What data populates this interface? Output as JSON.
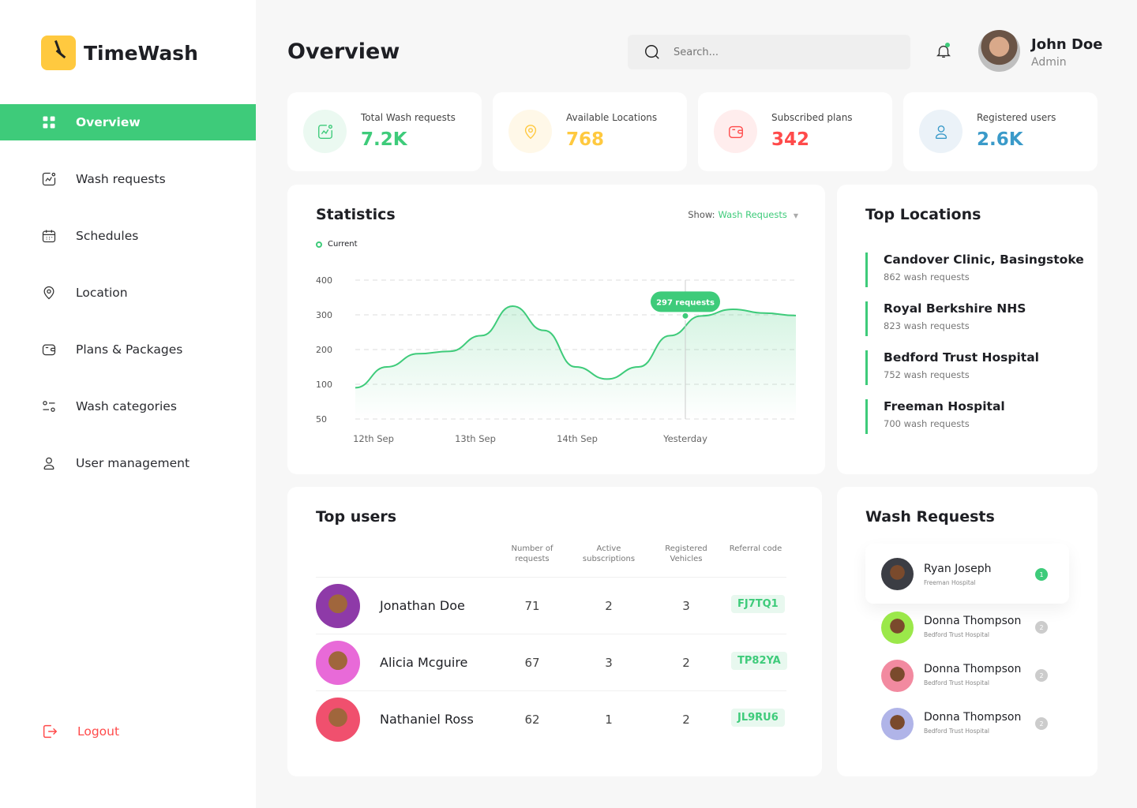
{
  "brand": {
    "name": "TimeWash"
  },
  "sidebar": {
    "items": [
      {
        "label": "Overview",
        "icon": "grid-icon",
        "active": true
      },
      {
        "label": "Wash requests",
        "icon": "chart-icon"
      },
      {
        "label": "Schedules",
        "icon": "calendar-icon"
      },
      {
        "label": "Location",
        "icon": "location-pin-icon"
      },
      {
        "label": "Plans & Packages",
        "icon": "wallet-icon"
      },
      {
        "label": "Wash categories",
        "icon": "sliders-icon"
      },
      {
        "label": "User management",
        "icon": "user-icon"
      }
    ],
    "logout": "Logout"
  },
  "header": {
    "title": "Overview",
    "search_placeholder": "Search...",
    "user": {
      "name": "John Doe",
      "role": "Admin"
    }
  },
  "stats": [
    {
      "label": "Total Wash requests",
      "value": "7.2K",
      "color": "#3ecb7a",
      "bg": "#ebf9f1",
      "icon": "chart-icon"
    },
    {
      "label": "Available Locations",
      "value": "768",
      "color": "#ffc93f",
      "bg": "#fff8e8",
      "icon": "location-pin-icon"
    },
    {
      "label": "Subscribed plans",
      "value": "342",
      "color": "#ff4a4a",
      "bg": "#ffeded",
      "icon": "wallet-icon"
    },
    {
      "label": "Registered users",
      "value": "2.6K",
      "color": "#3a9ac9",
      "bg": "#ebf2f8",
      "icon": "user-icon"
    }
  ],
  "statistics": {
    "title": "Statistics",
    "show_label": "Show:",
    "show_value": "Wash Requests",
    "legend": "Current",
    "tooltip": "297 requests"
  },
  "chart_data": {
    "type": "area",
    "series": [
      {
        "name": "Current",
        "values": [
          90,
          150,
          188,
          195,
          240,
          325,
          255,
          150,
          115,
          150,
          240,
          297,
          316,
          305,
          298
        ]
      }
    ],
    "xlabels": [
      "12th Sep",
      "13th Sep",
      "14th Sep",
      "Yesterday"
    ],
    "yticks": [
      "400",
      "300",
      "200",
      "100",
      "50"
    ],
    "highlight": {
      "label": "Yesterday",
      "value": 297
    },
    "grid": true,
    "color": "#3ecb7a"
  },
  "top_locations": {
    "title": "Top Locations",
    "items": [
      {
        "name": "Candover Clinic, Basingstoke",
        "sub": "862 wash requests"
      },
      {
        "name": "Royal Berkshire NHS",
        "sub": "823 wash requests"
      },
      {
        "name": "Bedford Trust Hospital",
        "sub": "752 wash requests"
      },
      {
        "name": "Freeman Hospital",
        "sub": "700 wash requests"
      }
    ]
  },
  "top_users": {
    "title": "Top users",
    "columns": [
      "Number of requests",
      "Active subscriptions",
      "Registered Vehicles",
      "Referral code"
    ],
    "rows": [
      {
        "name": "Jonathan  Doe",
        "requests": "71",
        "subs": "2",
        "vehicles": "3",
        "code": "FJ7TQ1",
        "avatar": "#8e3aa8"
      },
      {
        "name": "Alicia Mcguire",
        "requests": "67",
        "subs": "3",
        "vehicles": "2",
        "code": "TP82YA",
        "avatar": "#e86ad8"
      },
      {
        "name": "Nathaniel Ross",
        "requests": "62",
        "subs": "1",
        "vehicles": "2",
        "code": "JL9RU6",
        "avatar": "#f0506e"
      }
    ]
  },
  "wash_requests": {
    "title": "Wash Requests",
    "items": [
      {
        "name": "Ryan Joseph",
        "hospital": "Freeman Hospital",
        "badge": "1",
        "avatar": "#3b3d44"
      },
      {
        "name": "Donna Thompson",
        "hospital": "Bedford Trust Hospital",
        "badge": "2",
        "avatar": "#9be84a"
      },
      {
        "name": "Donna Thompson",
        "hospital": "Bedford Trust Hospital",
        "badge": "2",
        "avatar": "#f28aa0"
      },
      {
        "name": "Donna Thompson",
        "hospital": "Bedford Trust Hospital",
        "badge": "2",
        "avatar": "#b0b4e8"
      }
    ]
  }
}
